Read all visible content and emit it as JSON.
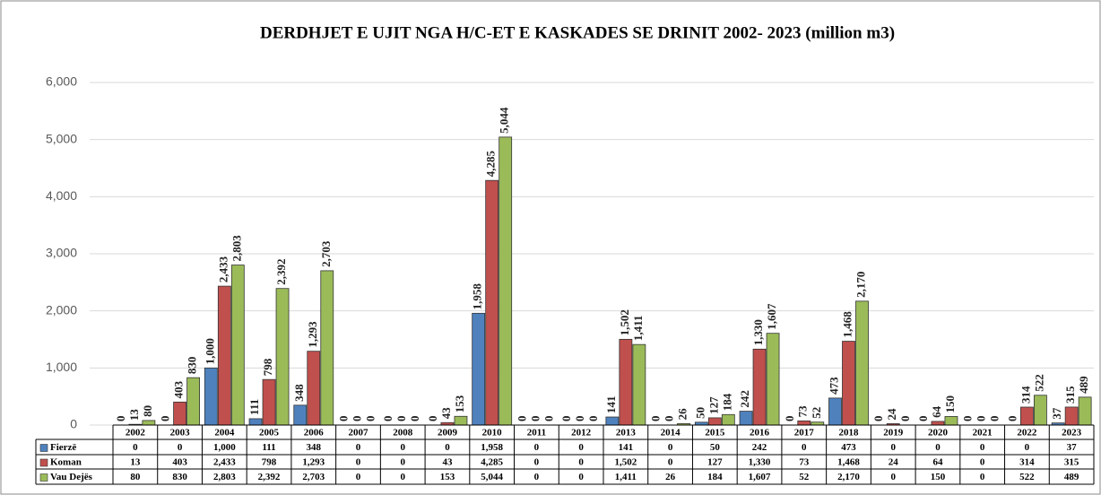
{
  "chart_data": {
    "type": "bar",
    "title": "DERDHJET E UJIT NGA H/C-ET  E  KASKADES SE DRINIT 2002- 2023  (million  m3)",
    "categories": [
      "2002",
      "2003",
      "2004",
      "2005",
      "2006",
      "2007",
      "2008",
      "2009",
      "2010",
      "2011",
      "2012",
      "2013",
      "2014",
      "2015",
      "2016",
      "2017",
      "2018",
      "2019",
      "2020",
      "2021",
      "2022",
      "2023"
    ],
    "series": [
      {
        "name": "Fierzë",
        "color": "#4f81bd",
        "values": [
          0,
          0,
          1000,
          111,
          348,
          0,
          0,
          0,
          1958,
          0,
          0,
          141,
          0,
          50,
          242,
          0,
          473,
          0,
          0,
          0,
          0,
          37
        ],
        "value_labels": [
          "0",
          "0",
          "1,000",
          "111",
          "348",
          "0",
          "0",
          "0",
          "1,958",
          "0",
          "0",
          "141",
          "0",
          "50",
          "242",
          "0",
          "473",
          "0",
          "0",
          "0",
          "0",
          "37"
        ]
      },
      {
        "name": "Koman",
        "color": "#c0504d",
        "values": [
          13,
          403,
          2433,
          798,
          1293,
          0,
          0,
          43,
          4285,
          0,
          0,
          1502,
          0,
          127,
          1330,
          73,
          1468,
          24,
          64,
          0,
          314,
          315
        ],
        "value_labels": [
          "13",
          "403",
          "2,433",
          "798",
          "1,293",
          "0",
          "0",
          "43",
          "4,285",
          "0",
          "0",
          "1,502",
          "0",
          "127",
          "1,330",
          "73",
          "1,468",
          "24",
          "64",
          "0",
          "314",
          "315"
        ]
      },
      {
        "name": "Vau Dejës",
        "color": "#9bbb59",
        "values": [
          80,
          830,
          2803,
          2392,
          2703,
          0,
          0,
          153,
          5044,
          0,
          0,
          1411,
          26,
          184,
          1607,
          52,
          2170,
          0,
          150,
          0,
          522,
          489
        ],
        "value_labels": [
          "80",
          "830",
          "2,803",
          "2,392",
          "2,703",
          "0",
          "0",
          "153",
          "5,044",
          "0",
          "0",
          "1,411",
          "26",
          "184",
          "1,607",
          "52",
          "2,170",
          "0",
          "150",
          "0",
          "522",
          "489"
        ]
      }
    ],
    "ylim": [
      0,
      6000
    ],
    "yticks": [
      0,
      {
        "value": 1000,
        "label": "1,000"
      },
      {
        "value": 2000,
        "label": "2,000"
      },
      {
        "value": 3000,
        "label": "3,000"
      },
      {
        "value": 4000,
        "label": "4,000"
      },
      {
        "value": 5000,
        "label": "5,000"
      },
      {
        "value": 6000,
        "label": "6,000"
      }
    ],
    "grid": true
  }
}
